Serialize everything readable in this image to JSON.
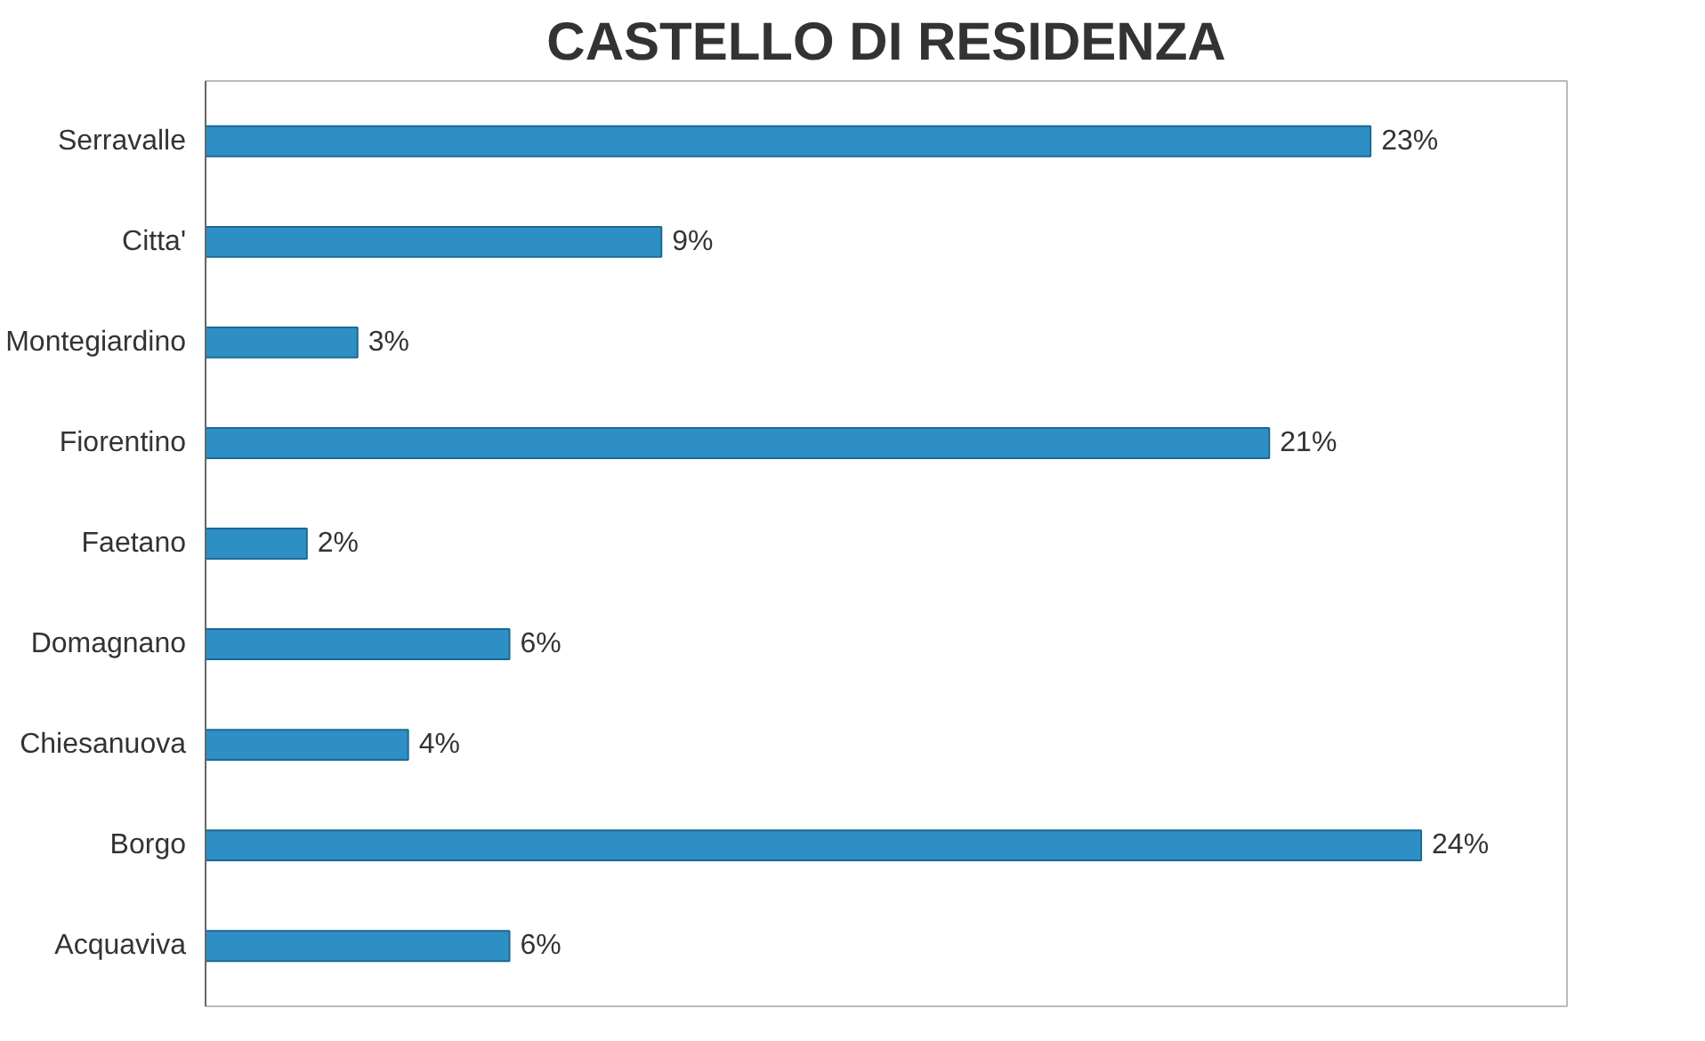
{
  "chart_data": {
    "type": "bar",
    "orientation": "horizontal",
    "title": "CASTELLO DI RESIDENZA",
    "categories": [
      "Serravalle",
      "Citta'",
      "Montegiardino",
      "Fiorentino",
      "Faetano",
      "Domagnano",
      "Chiesanuova",
      "Borgo",
      "Acquaviva"
    ],
    "values": [
      23,
      9,
      3,
      21,
      2,
      6,
      4,
      24,
      6
    ],
    "value_labels": [
      "23%",
      "9%",
      "3%",
      "21%",
      "2%",
      "6%",
      "4%",
      "24%",
      "6%"
    ],
    "color": "#2e8fc4",
    "tick_labels": "y",
    "grid": false
  }
}
